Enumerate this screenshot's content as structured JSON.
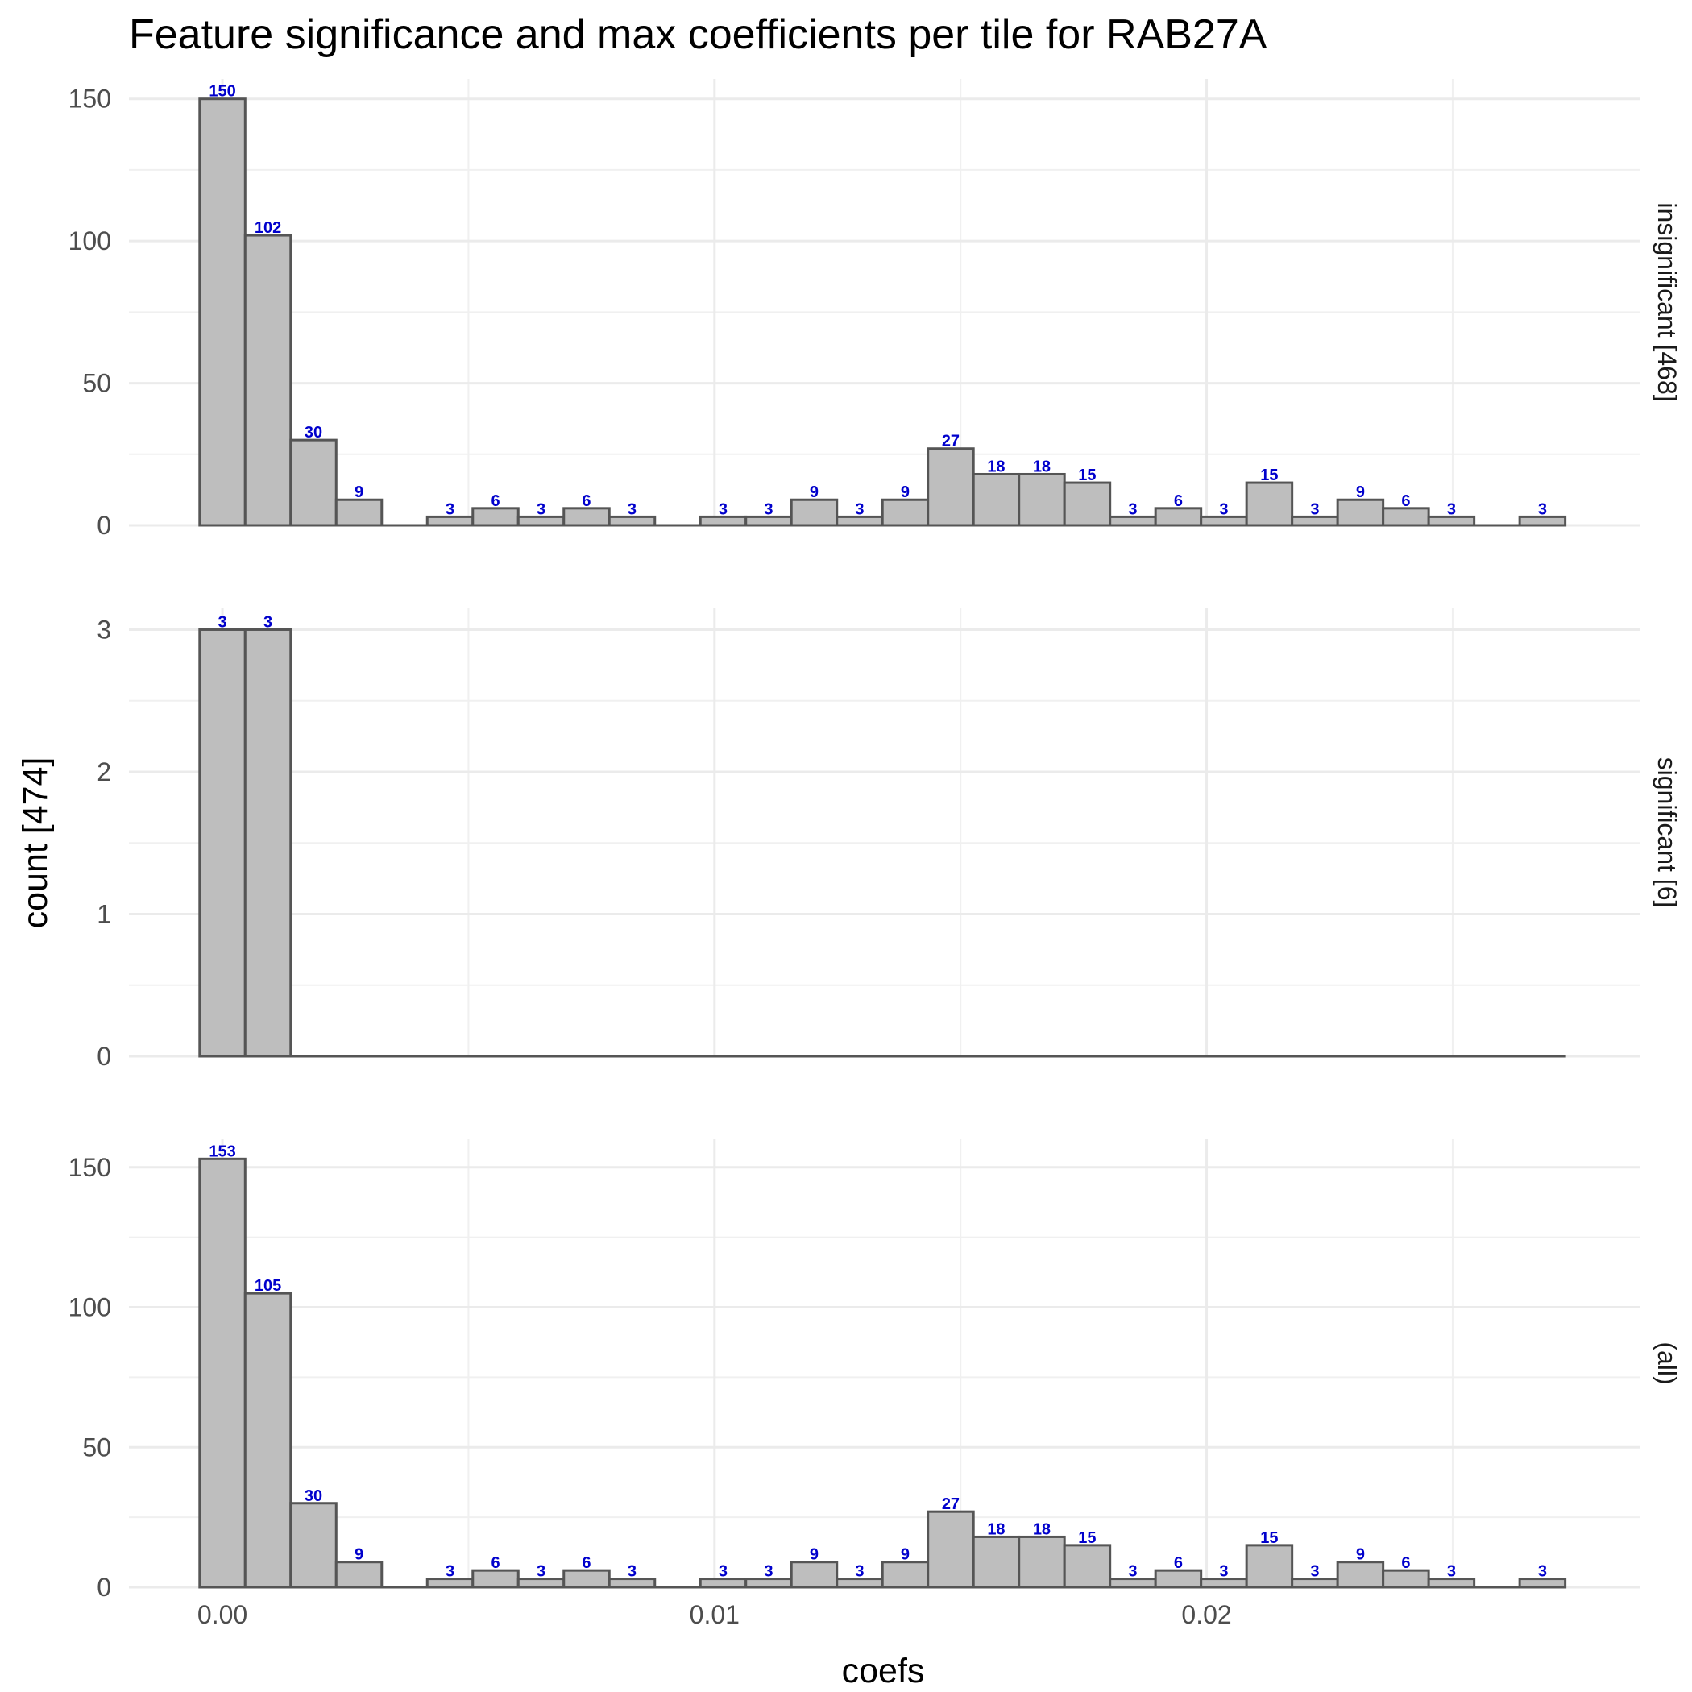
{
  "chart_data": {
    "type": "bar",
    "title": "Feature significance and max coefficients per tile for RAB27A",
    "xlabel": "coefs",
    "ylabel": "count [474]",
    "x_bin_centers": [
      0.0,
      0.000925,
      0.00185,
      0.002775,
      0.0037,
      0.004625,
      0.00555,
      0.006475,
      0.0074,
      0.008325,
      0.00925,
      0.010175,
      0.0111,
      0.012025,
      0.01295,
      0.013875,
      0.0148,
      0.015725,
      0.01665,
      0.017575,
      0.0185,
      0.019425,
      0.02035,
      0.021275,
      0.0222,
      0.023125,
      0.02405,
      0.024975,
      0.0259,
      0.026825
    ],
    "x_ticks": [
      0.0,
      0.01,
      0.02
    ],
    "x_tick_labels": [
      "0.00",
      "0.01",
      "0.02"
    ],
    "xlim": [
      -0.0019,
      0.0288
    ],
    "grid": true,
    "bar_fill": "#bebebe",
    "bar_stroke": "#555555",
    "label_color": "#0000cc",
    "panels": [
      {
        "strip": "insignificant [468]",
        "ylim": [
          0,
          157
        ],
        "y_ticks": [
          0,
          50,
          100,
          150
        ],
        "y_tick_labels": [
          "0",
          "50",
          "100",
          "150"
        ],
        "values": [
          150,
          102,
          30,
          9,
          0,
          3,
          6,
          3,
          6,
          3,
          0,
          3,
          3,
          9,
          3,
          9,
          27,
          18,
          18,
          15,
          3,
          6,
          3,
          15,
          3,
          9,
          6,
          3,
          0,
          3
        ]
      },
      {
        "strip": "significant [6]",
        "ylim": [
          0,
          3.15
        ],
        "y_ticks": [
          0,
          1,
          2,
          3
        ],
        "y_tick_labels": [
          "0",
          "1",
          "2",
          "3"
        ],
        "values": [
          3,
          3,
          0,
          0,
          0,
          0,
          0,
          0,
          0,
          0,
          0,
          0,
          0,
          0,
          0,
          0,
          0,
          0,
          0,
          0,
          0,
          0,
          0,
          0,
          0,
          0,
          0,
          0,
          0,
          0
        ]
      },
      {
        "strip": "(all)",
        "ylim": [
          0,
          160
        ],
        "y_ticks": [
          0,
          50,
          100,
          150
        ],
        "y_tick_labels": [
          "0",
          "50",
          "100",
          "150"
        ],
        "values": [
          153,
          105,
          30,
          9,
          0,
          3,
          6,
          3,
          6,
          3,
          0,
          3,
          3,
          9,
          3,
          9,
          27,
          18,
          18,
          15,
          3,
          6,
          3,
          15,
          3,
          9,
          6,
          3,
          0,
          3
        ]
      }
    ]
  }
}
